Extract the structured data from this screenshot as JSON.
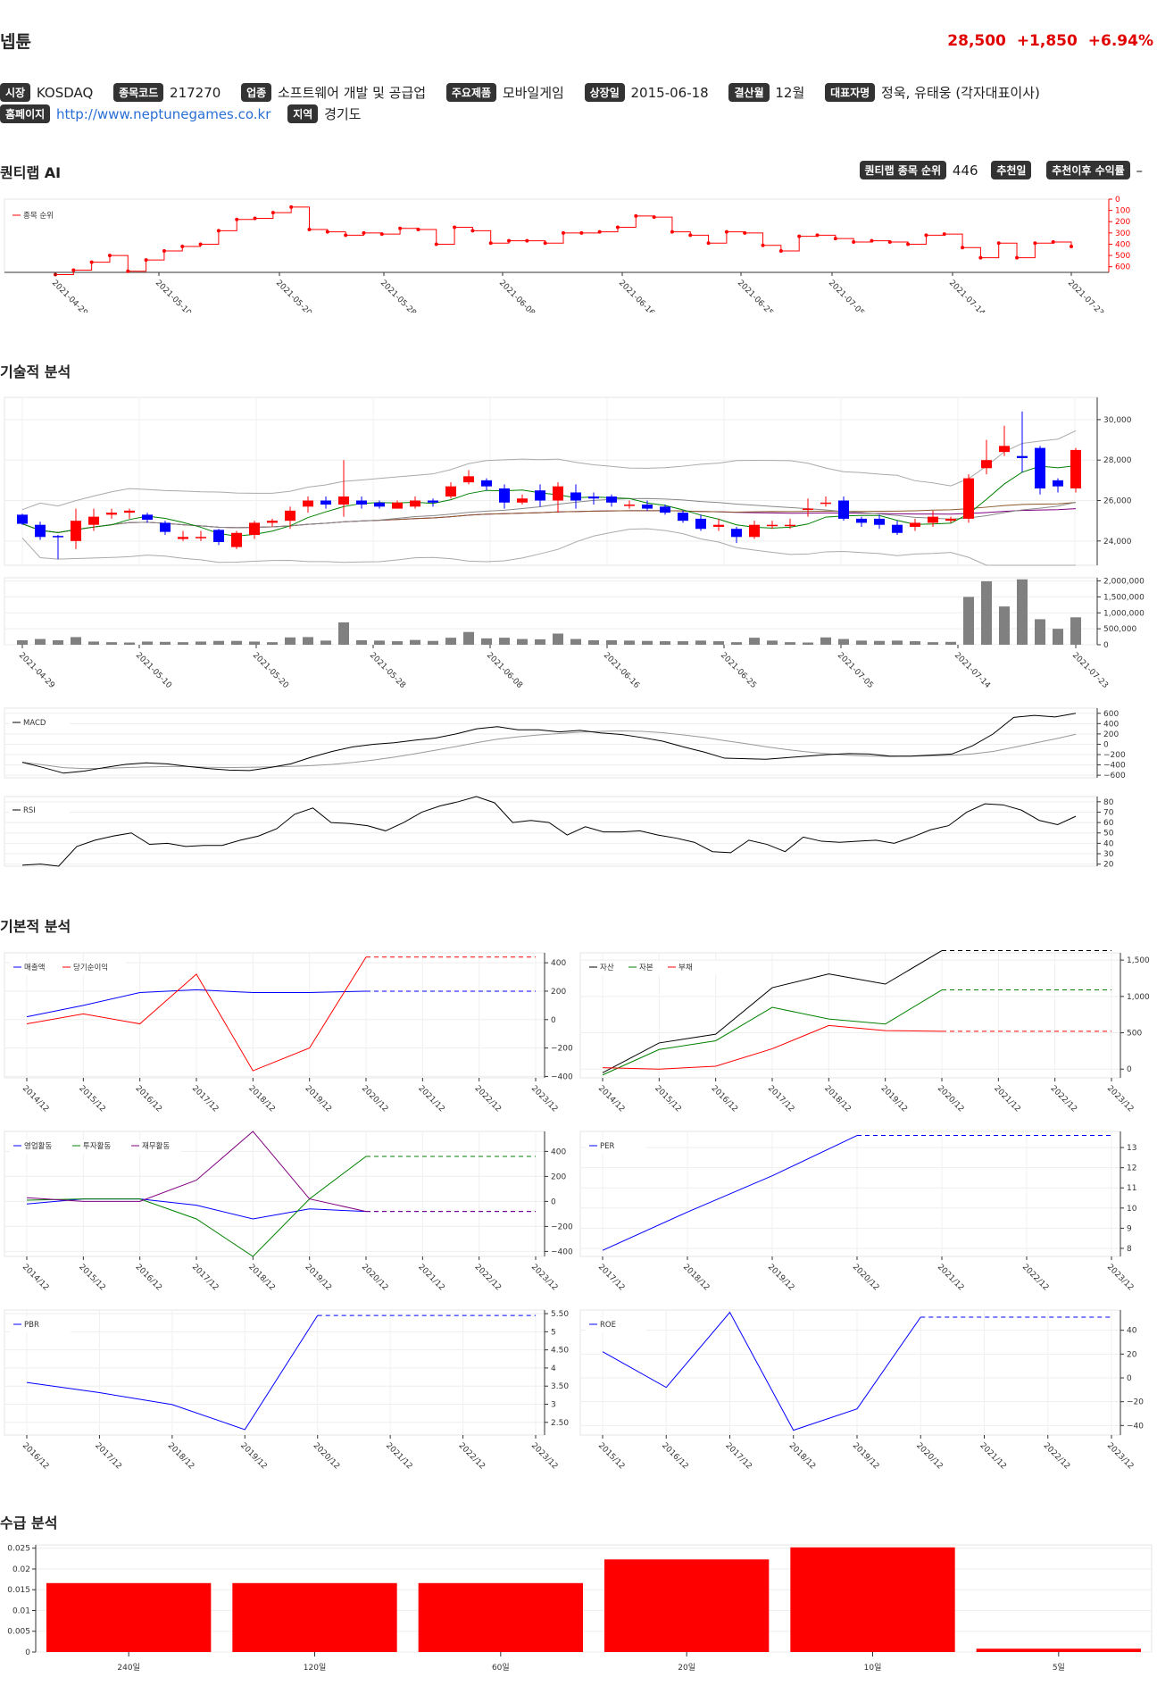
{
  "header": {
    "name": "넵튠",
    "price": "28,500",
    "change": "+1,850",
    "change_pct": "+6.94%"
  },
  "info": {
    "market_label": "시장",
    "market": "KOSDAQ",
    "code_label": "종목코드",
    "code": "217270",
    "industry_label": "업종",
    "industry": "소프트웨어 개발 및 공급업",
    "product_label": "주요제품",
    "product": "모바일게임",
    "listed_label": "상장일",
    "listed": "2015-06-18",
    "fiscal_label": "결산월",
    "fiscal": "12월",
    "ceo_label": "대표자명",
    "ceo": "정욱, 유태웅 (각자대표이사)",
    "homepage_label": "홈페이지",
    "homepage": "http://www.neptunegames.co.kr",
    "region_label": "지역",
    "region": "경기도"
  },
  "sections": {
    "ai": "퀀티랩 AI",
    "technical": "기술적 분석",
    "fundamental": "기본적 분석",
    "flow": "수급 분석"
  },
  "ai": {
    "rank_label": "퀀티랩 종목 순위",
    "rank_value": "446",
    "rec_date_label": "추천일",
    "rec_date_value": "",
    "rec_return_label": "추천이후 수익률",
    "rec_return_value": "–"
  },
  "colors": {
    "up": "#ff0000",
    "down": "#0000ff",
    "price": "#e00000"
  },
  "chart_data": [
    {
      "id": "rank",
      "type": "line",
      "series": [
        {
          "name": "종목 순위",
          "color": "red"
        }
      ],
      "x_ticks": [
        "2021-04-29",
        "2021-05-10",
        "2021-05-20",
        "2021-05-28",
        "2021-06-08",
        "2021-06-16",
        "2021-06-25",
        "2021-07-05",
        "2021-07-14",
        "2021-07-23"
      ],
      "y_ticks": [
        0,
        100,
        200,
        300,
        400,
        500,
        600
      ],
      "ylim": [
        0,
        650
      ],
      "y_inverted": true,
      "values": [
        670,
        630,
        560,
        500,
        640,
        540,
        460,
        420,
        400,
        280,
        180,
        170,
        120,
        70,
        270,
        290,
        320,
        300,
        310,
        260,
        270,
        400,
        250,
        280,
        390,
        370,
        370,
        390,
        300,
        300,
        290,
        250,
        150,
        160,
        290,
        320,
        390,
        290,
        300,
        410,
        460,
        330,
        320,
        350,
        380,
        370,
        380,
        400,
        320,
        310,
        430,
        520,
        390,
        520,
        390,
        380,
        420
      ]
    },
    {
      "id": "price",
      "type": "candlestick",
      "y_ticks": [
        24000,
        26000,
        28000,
        30000
      ],
      "ylim": [
        22800,
        31100
      ],
      "candles": [
        [
          25300,
          24850,
          25350,
          24800
        ],
        [
          24800,
          24200,
          24950,
          24050
        ],
        [
          24250,
          24200,
          24300,
          23100
        ],
        [
          24000,
          25000,
          25600,
          23600
        ],
        [
          24800,
          25200,
          25600,
          24500
        ],
        [
          25300,
          25400,
          25600,
          25100
        ],
        [
          25400,
          25500,
          25600,
          25100
        ],
        [
          25300,
          25050,
          25400,
          24900
        ],
        [
          24900,
          24450,
          25000,
          24300
        ],
        [
          24100,
          24200,
          24500,
          24000
        ],
        [
          24200,
          24200,
          24500,
          24000
        ],
        [
          24550,
          23950,
          24600,
          23800
        ],
        [
          23700,
          24400,
          24500,
          23600
        ],
        [
          24300,
          24900,
          25000,
          24100
        ],
        [
          24900,
          25000,
          25100,
          24700
        ],
        [
          25000,
          25500,
          25700,
          24600
        ],
        [
          25700,
          26000,
          26200,
          25400
        ],
        [
          26000,
          25800,
          26200,
          25600
        ],
        [
          25800,
          26200,
          28000,
          25200
        ],
        [
          26000,
          25800,
          26200,
          25600
        ],
        [
          25900,
          25700,
          26000,
          25600
        ],
        [
          25600,
          25900,
          26000,
          25600
        ],
        [
          25700,
          26000,
          26200,
          25600
        ],
        [
          26000,
          25900,
          26100,
          25700
        ],
        [
          26200,
          26700,
          26900,
          26100
        ],
        [
          26900,
          27200,
          27500,
          26800
        ],
        [
          27000,
          26700,
          27100,
          26500
        ],
        [
          26600,
          25900,
          26800,
          25600
        ],
        [
          25900,
          26100,
          26300,
          25800
        ],
        [
          26500,
          26000,
          26800,
          25700
        ],
        [
          26000,
          26700,
          26900,
          25400
        ],
        [
          26400,
          26000,
          26800,
          25600
        ],
        [
          26200,
          26100,
          26400,
          25800
        ],
        [
          26200,
          25900,
          26300,
          25700
        ],
        [
          25800,
          25800,
          26000,
          25600
        ],
        [
          25800,
          25600,
          26000,
          25500
        ],
        [
          25700,
          25400,
          25800,
          25300
        ],
        [
          25400,
          25000,
          25500,
          24900
        ],
        [
          25100,
          24600,
          25300,
          24500
        ],
        [
          24700,
          24800,
          25100,
          24500
        ],
        [
          24600,
          24200,
          24700,
          23900
        ],
        [
          24200,
          24800,
          25000,
          24100
        ],
        [
          24800,
          24800,
          25000,
          24600
        ],
        [
          24800,
          24800,
          25100,
          24600
        ],
        [
          25600,
          25600,
          26100,
          25200
        ],
        [
          25900,
          25900,
          26200,
          25700
        ],
        [
          26000,
          25100,
          26200,
          25000
        ],
        [
          25100,
          24900,
          25200,
          24700
        ],
        [
          25100,
          24800,
          25300,
          24600
        ],
        [
          24800,
          24400,
          25000,
          24300
        ],
        [
          24700,
          24900,
          25100,
          24500
        ],
        [
          24900,
          25200,
          25500,
          24700
        ],
        [
          25000,
          25100,
          25200,
          24900
        ],
        [
          25100,
          27100,
          27300,
          24900
        ],
        [
          27600,
          28000,
          29000,
          27300
        ],
        [
          28400,
          28700,
          29700,
          28200
        ],
        [
          28200,
          28100,
          30400,
          27400
        ],
        [
          28600,
          26600,
          28700,
          26300
        ],
        [
          27000,
          26700,
          27100,
          26400
        ],
        [
          26600,
          28500,
          28600,
          26400
        ]
      ],
      "volume": [
        140000,
        180000,
        140000,
        240000,
        100000,
        80000,
        70000,
        100000,
        90000,
        80000,
        100000,
        120000,
        120000,
        100000,
        80000,
        230000,
        240000,
        130000,
        700000,
        140000,
        130000,
        110000,
        150000,
        120000,
        220000,
        400000,
        200000,
        220000,
        180000,
        170000,
        350000,
        180000,
        140000,
        140000,
        130000,
        120000,
        110000,
        110000,
        130000,
        110000,
        80000,
        220000,
        130000,
        80000,
        70000,
        230000,
        180000,
        130000,
        120000,
        130000,
        110000,
        80000,
        90000,
        1500000,
        1990000,
        1200000,
        2050000,
        800000,
        500000,
        860000
      ],
      "volume_ticks": [
        0,
        500000,
        1000000,
        1500000,
        2000000
      ],
      "x_ticks": [
        "2021-04-29",
        "2021-05-10",
        "2021-05-20",
        "2021-05-28",
        "2021-06-08",
        "2021-06-16",
        "2021-06-25",
        "2021-07-05",
        "2021-07-14",
        "2021-07-23"
      ]
    },
    {
      "id": "macd",
      "type": "line",
      "series": [
        {
          "name": "MACD",
          "color": "#000"
        }
      ],
      "y_ticks": [
        -600,
        -400,
        -200,
        0,
        200,
        400,
        600
      ],
      "ylim": [
        -650,
        700
      ],
      "values": [
        -350,
        -450,
        -560,
        -520,
        -450,
        -390,
        -360,
        -380,
        -430,
        -470,
        -500,
        -510,
        -450,
        -380,
        -250,
        -140,
        -50,
        0,
        30,
        80,
        120,
        200,
        300,
        340,
        280,
        280,
        240,
        270,
        220,
        190,
        130,
        60,
        -50,
        -150,
        -270,
        -280,
        -290,
        -260,
        -230,
        -200,
        -180,
        -190,
        -230,
        -230,
        -210,
        -190,
        -30,
        200,
        520,
        560,
        530,
        600
      ]
    },
    {
      "id": "rsi",
      "type": "line",
      "series": [
        {
          "name": "RSI",
          "color": "#000"
        }
      ],
      "y_ticks": [
        20,
        30,
        40,
        50,
        60,
        70,
        80
      ],
      "ylim": [
        18,
        85
      ],
      "values": [
        19,
        20,
        18,
        37,
        43,
        47,
        50,
        39,
        40,
        37,
        38,
        38,
        43,
        47,
        54,
        68,
        74,
        60,
        59,
        57,
        52,
        60,
        70,
        76,
        80,
        85,
        79,
        60,
        62,
        60,
        48,
        56,
        51,
        51,
        52,
        48,
        45,
        41,
        32,
        31,
        43,
        39,
        32,
        46,
        42,
        41,
        42,
        43,
        40,
        46,
        53,
        57,
        70,
        78,
        77,
        72,
        62,
        58,
        66
      ]
    },
    {
      "id": "revenue",
      "type": "line",
      "x_ticks": [
        "2014/12",
        "2015/12",
        "2016/12",
        "2017/12",
        "2018/12",
        "2019/12",
        "2020/12",
        "2021/12",
        "2022/12",
        "2023/12"
      ],
      "y_ticks": [
        -400,
        -200,
        0,
        200,
        400
      ],
      "ylim": [
        -410,
        470
      ],
      "series": [
        {
          "name": "매출액",
          "color": "blue",
          "values": [
            20,
            100,
            190,
            210,
            190,
            190,
            200
          ],
          "proj": 200
        },
        {
          "name": "당기순이익",
          "color": "red",
          "values": [
            -30,
            40,
            -30,
            320,
            -360,
            -200,
            440
          ],
          "proj": 440
        }
      ]
    },
    {
      "id": "balance",
      "type": "line",
      "x_ticks": [
        "2014/12",
        "2015/12",
        "2016/12",
        "2017/12",
        "2018/12",
        "2019/12",
        "2020/12",
        "2021/12",
        "2022/12",
        "2023/12"
      ],
      "y_ticks": [
        0,
        500,
        1000,
        1500
      ],
      "ylim": [
        -120,
        1600
      ],
      "series": [
        {
          "name": "자산",
          "color": "#000",
          "values": [
            -50,
            360,
            480,
            1120,
            1310,
            1170,
            1630
          ],
          "proj": 1630
        },
        {
          "name": "자본",
          "color": "green",
          "values": [
            -80,
            270,
            390,
            850,
            690,
            620,
            1090
          ],
          "proj": 1090
        },
        {
          "name": "부채",
          "color": "red",
          "values": [
            20,
            0,
            40,
            280,
            600,
            530,
            520
          ],
          "proj": 520
        }
      ]
    },
    {
      "id": "cashflow",
      "type": "line",
      "x_ticks": [
        "2014/12",
        "2015/12",
        "2016/12",
        "2017/12",
        "2018/12",
        "2019/12",
        "2020/12",
        "2021/12",
        "2022/12",
        "2023/12"
      ],
      "y_ticks": [
        -400,
        -200,
        0,
        200,
        400
      ],
      "ylim": [
        -440,
        560
      ],
      "series": [
        {
          "name": "영업활동",
          "color": "blue",
          "values": [
            -20,
            20,
            20,
            -30,
            -140,
            -60,
            -80
          ],
          "proj": -80
        },
        {
          "name": "투자활동",
          "color": "green",
          "values": [
            10,
            20,
            20,
            -140,
            -440,
            20,
            360
          ],
          "proj": 360
        },
        {
          "name": "재무활동",
          "color": "purple",
          "values": [
            30,
            0,
            0,
            170,
            560,
            20,
            -80
          ],
          "proj": -80
        }
      ]
    },
    {
      "id": "per",
      "type": "line",
      "x_ticks": [
        "2017/12",
        "2018/12",
        "2019/12",
        "2020/12",
        "2021/12",
        "2022/12",
        "2023/12"
      ],
      "y_ticks": [
        8,
        9,
        10,
        11,
        12,
        13
      ],
      "ylim": [
        7.6,
        13.8
      ],
      "series": [
        {
          "name": "PER",
          "color": "blue",
          "values": [
            7.9,
            9.8,
            11.6,
            13.6
          ],
          "proj": 13.6
        }
      ]
    },
    {
      "id": "pbr",
      "type": "line",
      "x_ticks": [
        "2016/12",
        "2017/12",
        "2018/12",
        "2019/12",
        "2020/12",
        "2021/12",
        "2022/12",
        "2023/12"
      ],
      "y_ticks": [
        2.5,
        3,
        3.5,
        4,
        4.5,
        5,
        5.5
      ],
      "y_tick_labels": [
        "2.50",
        "3",
        "3.50",
        "4",
        "4.50",
        "5",
        "5.50"
      ],
      "ylim": [
        2.15,
        5.6
      ],
      "series": [
        {
          "name": "PBR",
          "color": "blue",
          "values": [
            3.6,
            3.32,
            2.99,
            2.3,
            5.45
          ],
          "proj": 5.45
        }
      ]
    },
    {
      "id": "roe",
      "type": "line",
      "x_ticks": [
        "2015/12",
        "2016/12",
        "2017/12",
        "2018/12",
        "2019/12",
        "2020/12",
        "2021/12",
        "2022/12",
        "2023/12"
      ],
      "y_ticks": [
        -40,
        -20,
        0,
        20,
        40
      ],
      "ylim": [
        -48,
        57
      ],
      "series": [
        {
          "name": "ROE",
          "color": "blue",
          "values": [
            22,
            -8,
            55,
            -44,
            -26,
            51
          ],
          "proj": 51
        }
      ]
    },
    {
      "id": "flow",
      "type": "bar",
      "categories": [
        "240일",
        "120일",
        "60일",
        "20일",
        "10일",
        "5일"
      ],
      "values": [
        0.0166,
        0.0166,
        0.0166,
        0.0223,
        0.0252,
        0.0008
      ],
      "y_ticks": [
        0,
        0.005,
        0.01,
        0.015,
        0.02,
        0.025
      ],
      "ylim": [
        0,
        0.0258
      ],
      "color": "red"
    }
  ]
}
